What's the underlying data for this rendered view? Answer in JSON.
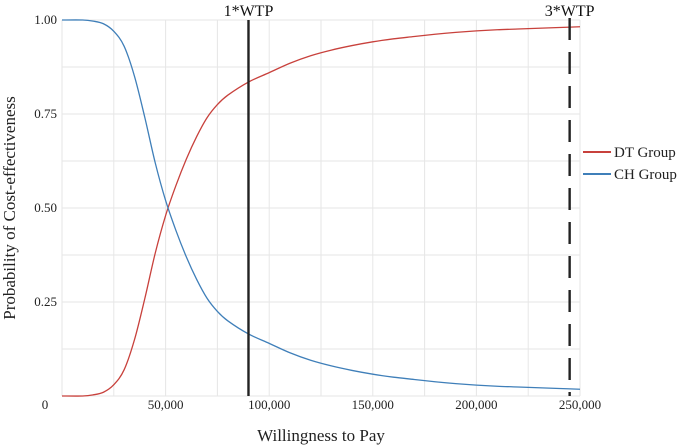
{
  "chart_data": {
    "type": "line",
    "xlabel": "Willingness to Pay",
    "ylabel": "Probability of Cost-effectiveness",
    "xlim": [
      0,
      250000
    ],
    "ylim": [
      0,
      1
    ],
    "x_ticks": [
      0,
      50000,
      100000,
      150000,
      200000,
      250000
    ],
    "x_tick_labels": [
      "0",
      "50,000",
      "100,000",
      "150,000",
      "200,000",
      "250,000"
    ],
    "y_ticks": [
      0.25,
      0.5,
      0.75,
      1.0
    ],
    "y_tick_labels": [
      "0.25",
      "0.50",
      "0.75",
      "1.00"
    ],
    "grid": true,
    "legend_position": "right",
    "x": [
      0,
      10000,
      15000,
      20000,
      25000,
      30000,
      35000,
      40000,
      45000,
      50000,
      55000,
      60000,
      65000,
      70000,
      75000,
      80000,
      90000,
      100000,
      110000,
      120000,
      130000,
      140000,
      150000,
      160000,
      170000,
      180000,
      190000,
      200000,
      210000,
      220000,
      230000,
      240000,
      250000
    ],
    "series": [
      {
        "name": "DT Group",
        "color": "#c8413c",
        "values": [
          0.0,
          0.0,
          0.003,
          0.01,
          0.03,
          0.07,
          0.15,
          0.26,
          0.38,
          0.48,
          0.56,
          0.63,
          0.69,
          0.74,
          0.775,
          0.8,
          0.835,
          0.86,
          0.885,
          0.905,
          0.92,
          0.932,
          0.942,
          0.95,
          0.956,
          0.962,
          0.967,
          0.971,
          0.974,
          0.976,
          0.978,
          0.98,
          0.982
        ]
      },
      {
        "name": "CH Group",
        "color": "#3f7fb9",
        "values": [
          1.0,
          1.0,
          0.997,
          0.99,
          0.97,
          0.93,
          0.85,
          0.74,
          0.62,
          0.52,
          0.44,
          0.37,
          0.31,
          0.26,
          0.225,
          0.2,
          0.165,
          0.14,
          0.115,
          0.095,
          0.08,
          0.068,
          0.058,
          0.05,
          0.044,
          0.038,
          0.033,
          0.029,
          0.026,
          0.024,
          0.022,
          0.02,
          0.018
        ]
      }
    ],
    "annotations": [
      {
        "label": "1*WTP",
        "x": 90000,
        "style": "solid"
      },
      {
        "label": "3*WTP",
        "x": 245000,
        "style": "dashed"
      }
    ]
  }
}
